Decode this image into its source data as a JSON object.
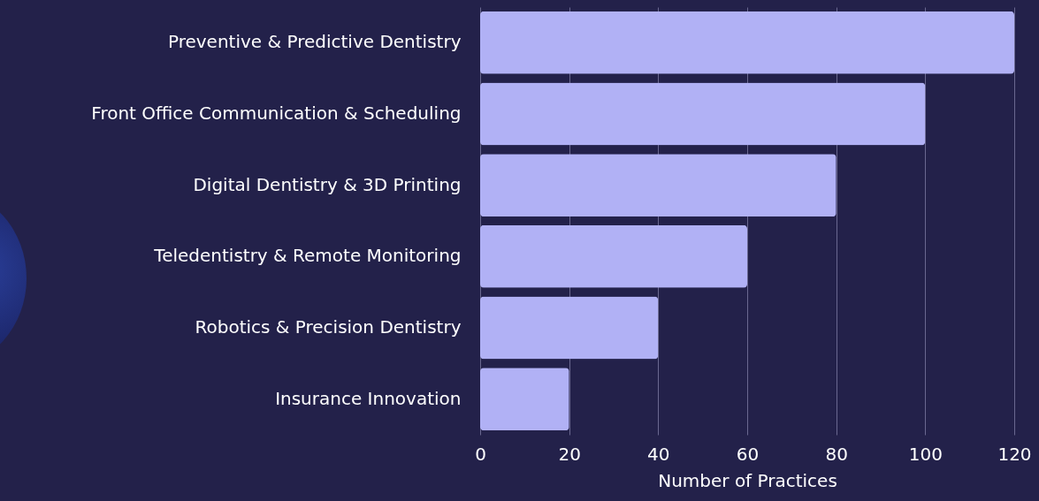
{
  "chart_data": {
    "type": "bar",
    "orientation": "horizontal",
    "xlabel": "Number of Practices",
    "categories": [
      "Preventive & Predictive Dentistry",
      "Front Office Communication & Scheduling",
      "Digital Dentistry & 3D Printing",
      "Teledentistry & Remote Monitoring",
      "Robotics & Precision Dentistry",
      "Insurance Innovation"
    ],
    "values": [
      120,
      100,
      80,
      60,
      40,
      20
    ],
    "color": "#b1b1f5",
    "xlim": [
      0,
      120
    ],
    "xticks": [
      0,
      20,
      40,
      60,
      80,
      100,
      120
    ],
    "grid": "x"
  }
}
